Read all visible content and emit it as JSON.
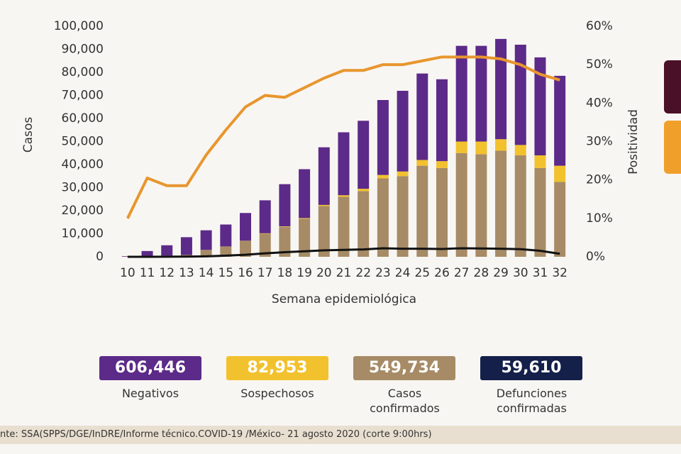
{
  "chart_data": {
    "type": "bar",
    "y_label": "Casos",
    "y2_label": "Positividad",
    "x_label": "Semana epidemiológica",
    "categories": [
      "10",
      "11",
      "12",
      "13",
      "14",
      "15",
      "16",
      "17",
      "18",
      "19",
      "20",
      "21",
      "22",
      "23",
      "24",
      "25",
      "26",
      "27",
      "28",
      "29",
      "30",
      "31",
      "32"
    ],
    "ylim": [
      0,
      100000
    ],
    "yticks": [
      0,
      {
        "value": 10000,
        "label": "10,000"
      },
      {
        "value": 20000,
        "label": "20,000"
      },
      {
        "value": 30000,
        "label": "30,000"
      },
      {
        "value": 40000,
        "label": "40,000"
      },
      {
        "value": 50000,
        "label": "50,000"
      },
      {
        "value": 60000,
        "label": "60,000"
      },
      {
        "value": 70000,
        "label": "70,000"
      },
      {
        "value": 80000,
        "label": "80,000"
      },
      {
        "value": 90000,
        "label": "90,000"
      },
      {
        "value": 100000,
        "label": "100,000"
      }
    ],
    "y2lim": [
      0,
      60
    ],
    "y2ticks": [
      {
        "value": 0,
        "label": "0%"
      },
      {
        "value": 10,
        "label": "10%"
      },
      {
        "value": 20,
        "label": "20%"
      },
      {
        "value": 30,
        "label": "30%"
      },
      {
        "value": 40,
        "label": "40%"
      },
      {
        "value": 50,
        "label": "50%"
      },
      {
        "value": 60,
        "label": "60%"
      }
    ],
    "series": [
      {
        "name": "Negativos",
        "type": "bar",
        "color": "#5c2a88",
        "total": "606,446",
        "values": [
          200,
          2200,
          4500,
          7700,
          8500,
          9500,
          12000,
          14300,
          18300,
          21200,
          25000,
          27300,
          29500,
          32500,
          35000,
          37500,
          35500,
          41500,
          41500,
          43500,
          43500,
          42500,
          39000
        ]
      },
      {
        "name": "Sospechosos",
        "type": "bar",
        "color": "#f2c12e",
        "total": "82,953",
        "values": [
          0,
          0,
          0,
          0,
          0,
          0,
          0,
          200,
          200,
          300,
          500,
          700,
          1000,
          1500,
          2000,
          2500,
          3000,
          5000,
          5500,
          5000,
          4500,
          5500,
          7000
        ]
      },
      {
        "name": "Casos confirmados",
        "type": "bar",
        "color": "#a68b66",
        "total": "549,734",
        "values": [
          100,
          300,
          500,
          800,
          3000,
          4500,
          7000,
          10000,
          13000,
          16500,
          22000,
          26000,
          28500,
          34000,
          35000,
          39500,
          38500,
          45000,
          44500,
          46000,
          44000,
          38500,
          32500
        ]
      },
      {
        "name": "Defunciones confirmadas",
        "type": "line",
        "color": "#14204a",
        "total": "59,610",
        "values": [
          0,
          10,
          30,
          80,
          200,
          500,
          900,
          1500,
          2000,
          2400,
          2800,
          3000,
          3200,
          3700,
          3500,
          3500,
          3400,
          3700,
          3600,
          3500,
          3300,
          2600,
          1300
        ]
      },
      {
        "type": "line",
        "axis": "y2",
        "color": "#e8962e",
        "values": [
          10,
          20.5,
          18.5,
          18.5,
          26.5,
          33,
          39,
          42,
          41.5,
          44,
          46.5,
          48.5,
          48.5,
          50,
          50,
          51,
          52,
          52,
          52,
          51.5,
          50,
          47.5,
          46
        ]
      }
    ]
  },
  "footer": "nte: SSA(SPPS/DGE/InDRE/Informe técnico.COVID-19 /México- 21 agosto 2020 (corte 9:00hrs)"
}
